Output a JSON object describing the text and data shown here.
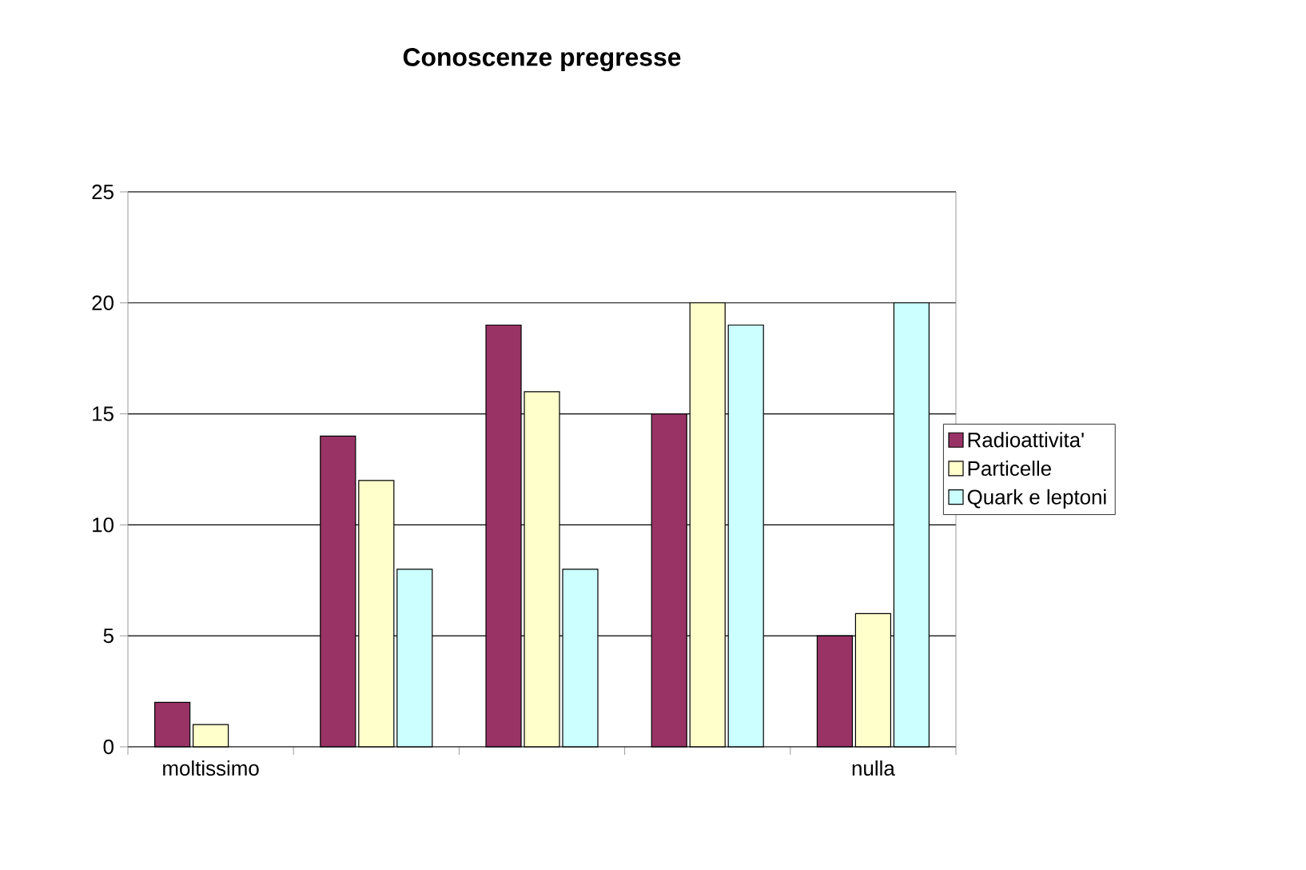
{
  "chart_data": {
    "type": "bar",
    "title": "**Conoscenze pregresse**",
    "categories": [
      "moltissimo",
      null,
      null,
      null,
      "nulla"
    ],
    "series": [
      {
        "name": "Radioattivita'",
        "color": "#993366",
        "values": [
          2,
          14,
          19,
          15,
          5
        ]
      },
      {
        "name": "Particelle",
        "color": "#ffffcc",
        "values": [
          1,
          12,
          16,
          20,
          6
        ]
      },
      {
        "name": "Quark e leptoni",
        "color": "#ccffff",
        "values": [
          null,
          8,
          8,
          19,
          20
        ]
      }
    ],
    "ylim": [
      0,
      25
    ],
    "yticks": [
      0,
      5,
      10,
      15,
      20,
      25
    ],
    "grid": "y",
    "legend": "right"
  }
}
